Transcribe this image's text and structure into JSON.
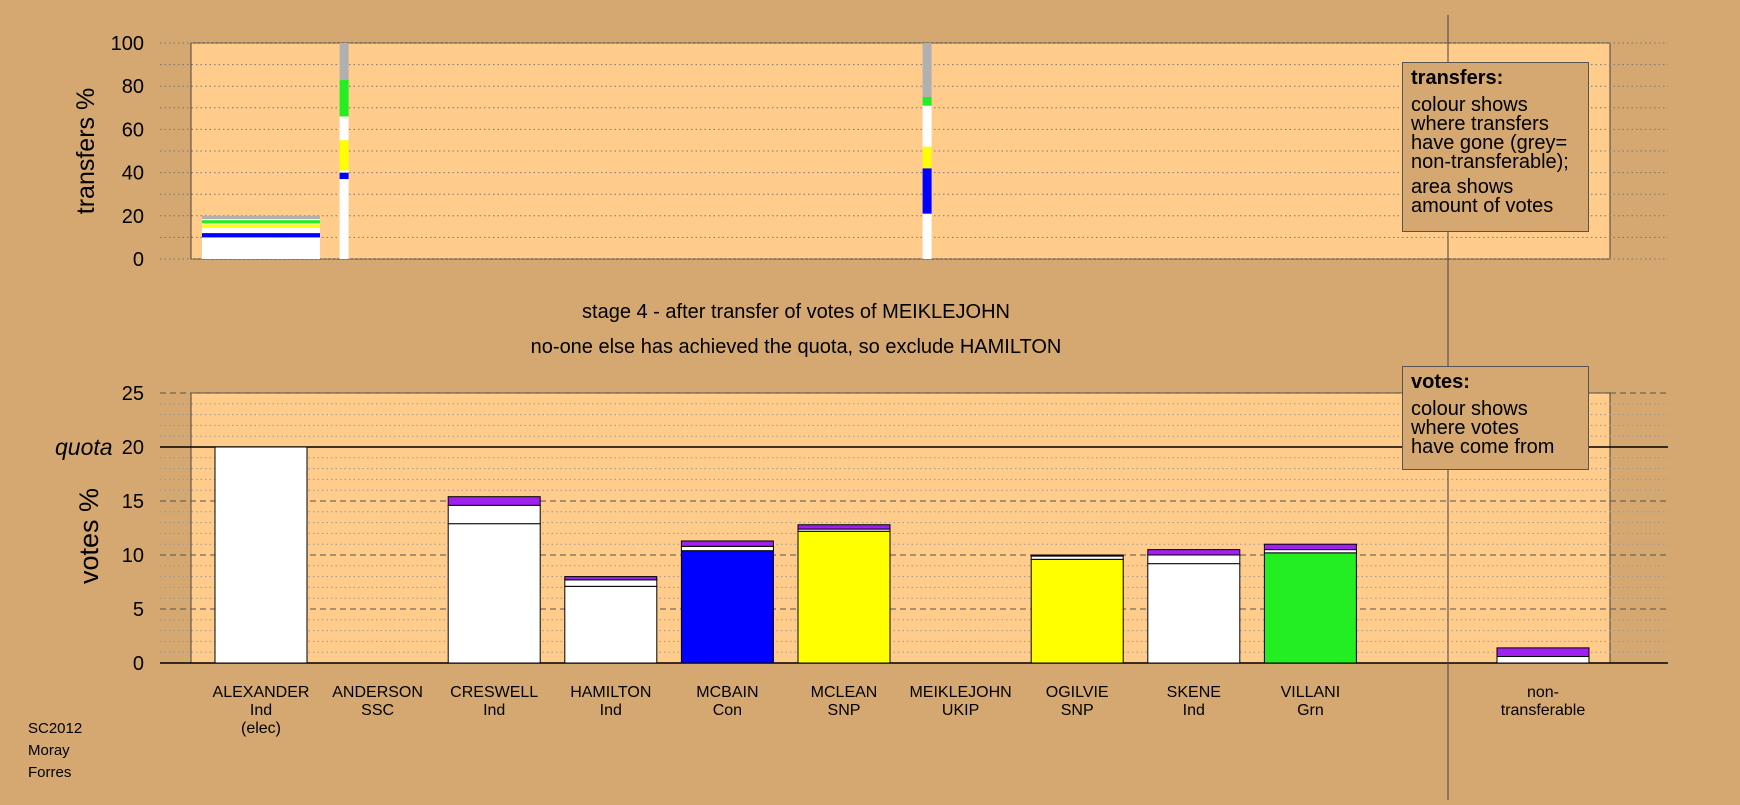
{
  "colors": {
    "background": "#d4a870",
    "plot_background": "#ffcc8c",
    "Ind": "#ffffff",
    "SSC": "#a020f0",
    "Con": "#0000ff",
    "SNP": "#ffff00",
    "Grn": "#22ee22",
    "non_transferable": "#b0b0b0",
    "minor": "#7a00c0"
  },
  "chart_data": [
    {
      "name": "transfers",
      "type": "bar",
      "stacked": true,
      "ylabel": "transfers %",
      "ylim": [
        0,
        100
      ],
      "yticks": [
        0,
        20,
        40,
        60,
        80,
        100
      ],
      "grid": "dotted",
      "bars": [
        {
          "candidate": "ALEXANDER",
          "segments": [
            {
              "party": "Ind",
              "value": 10
            },
            {
              "party": "Con",
              "value": 2
            },
            {
              "party": "Ind",
              "value": 2.5
            },
            {
              "party": "SNP",
              "value": 1.5
            },
            {
              "party": "Ind",
              "value": 0.5
            },
            {
              "party": "Grn",
              "value": 1.5
            },
            {
              "party": "Ind",
              "value": 0.5
            },
            {
              "party": "non_transferable",
              "value": 1.5
            }
          ]
        },
        {
          "candidate": "ANDERSON",
          "segments": [
            {
              "party": "Ind",
              "value": 37
            },
            {
              "party": "Con",
              "value": 3
            },
            {
              "party": "Ind",
              "value": 1
            },
            {
              "party": "SNP",
              "value": 14
            },
            {
              "party": "Ind",
              "value": 11
            },
            {
              "party": "Grn",
              "value": 17
            },
            {
              "party": "non_transferable",
              "value": 17
            }
          ]
        },
        {
          "candidate": "MEIKLEJOHN",
          "segments": [
            {
              "party": "Ind",
              "value": 21
            },
            {
              "party": "Con",
              "value": 21
            },
            {
              "party": "SNP",
              "value": 10
            },
            {
              "party": "Ind",
              "value": 19
            },
            {
              "party": "Grn",
              "value": 4
            },
            {
              "party": "non_transferable",
              "value": 25
            }
          ]
        }
      ],
      "legend_box": {
        "title": "transfers:",
        "lines_a": [
          "colour shows",
          "where transfers",
          "have gone (grey=",
          "non-transferable);"
        ],
        "lines_b": [
          "area shows",
          "amount of votes"
        ]
      }
    },
    {
      "name": "votes",
      "type": "bar",
      "stacked": true,
      "ylabel": "votes %",
      "ylim": [
        0,
        25
      ],
      "yticks": [
        0,
        5,
        10,
        15,
        20,
        25
      ],
      "quota": 20,
      "quota_label": "quota",
      "grid": "dashed",
      "candidates": [
        {
          "name": "ALEXANDER",
          "party": "Ind",
          "note": "(elec)",
          "segments": [
            {
              "party": "Ind",
              "value": 20
            }
          ]
        },
        {
          "name": "ANDERSON",
          "party": "SSC",
          "note": "",
          "segments": []
        },
        {
          "name": "CRESWELL",
          "party": "Ind",
          "note": "",
          "segments": [
            {
              "party": "Ind",
              "value": 12.9
            },
            {
              "party": "Ind",
              "value": 1.7
            },
            {
              "party": "SSC",
              "value": 0.8
            }
          ]
        },
        {
          "name": "HAMILTON",
          "party": "Ind",
          "note": "",
          "segments": [
            {
              "party": "Ind",
              "value": 7.1
            },
            {
              "party": "Ind",
              "value": 0.6
            },
            {
              "party": "SSC",
              "value": 0.3
            }
          ]
        },
        {
          "name": "MCBAIN",
          "party": "Con",
          "note": "",
          "segments": [
            {
              "party": "Con",
              "value": 10.4
            },
            {
              "party": "Ind",
              "value": 0.4
            },
            {
              "party": "SSC",
              "value": 0.5
            }
          ]
        },
        {
          "name": "MCLEAN",
          "party": "SNP",
          "note": "",
          "segments": [
            {
              "party": "SNP",
              "value": 12.2
            },
            {
              "party": "Ind",
              "value": 0.2
            },
            {
              "party": "SSC",
              "value": 0.4
            }
          ]
        },
        {
          "name": "MEIKLEJOHN",
          "party": "UKIP",
          "note": "",
          "segments": []
        },
        {
          "name": "OGILVIE",
          "party": "SNP",
          "note": "",
          "segments": [
            {
              "party": "SNP",
              "value": 9.6
            },
            {
              "party": "Ind",
              "value": 0.3
            },
            {
              "party": "SSC",
              "value": 0.1
            }
          ]
        },
        {
          "name": "SKENE",
          "party": "Ind",
          "note": "",
          "segments": [
            {
              "party": "Ind",
              "value": 9.2
            },
            {
              "party": "Ind",
              "value": 0.8
            },
            {
              "party": "SSC",
              "value": 0.5
            }
          ]
        },
        {
          "name": "VILLANI",
          "party": "Grn",
          "note": "",
          "segments": [
            {
              "party": "Grn",
              "value": 10.2
            },
            {
              "party": "Ind",
              "value": 0.3
            },
            {
              "party": "SSC",
              "value": 0.5
            }
          ]
        }
      ],
      "nontransferable": {
        "label_line1": "non-",
        "label_line2": "transferable",
        "segments": [
          {
            "party": "Ind",
            "value": 0.6
          },
          {
            "party": "SSC",
            "value": 0.8
          }
        ]
      },
      "legend_box": {
        "title": "votes:",
        "lines": [
          "colour shows",
          "where votes",
          "have come from"
        ]
      }
    }
  ],
  "stage_title": "stage 4 - after transfer of votes of MEIKLEJOHN",
  "stage_subtitle": "no-one else has achieved the quota, so exclude HAMILTON",
  "footer": {
    "election": "SC2012",
    "council": "Moray",
    "ward": "Forres"
  }
}
